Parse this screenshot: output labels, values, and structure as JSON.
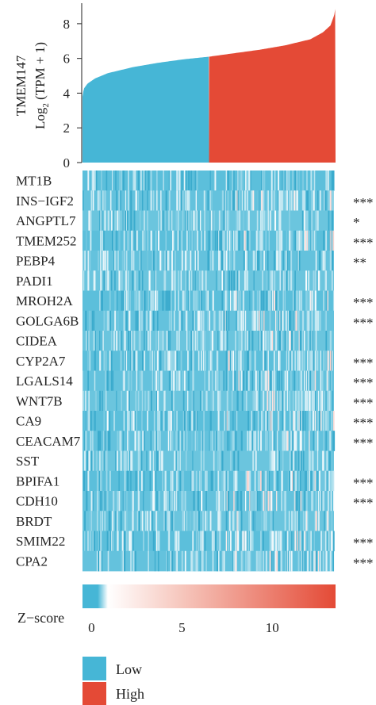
{
  "colors": {
    "low": "#46b6d6",
    "high": "#e44a36",
    "heat_low": "#46b6d6",
    "heat_mid": "#ffffff",
    "heat_high": "#e44a36"
  },
  "chart_data": [
    {
      "type": "area",
      "description": "TMEM147 expression sorted ascending across samples",
      "ylabel_line1": "TMEM147",
      "ylabel_line2_prefix": "Log",
      "ylabel_line2_sub": "2",
      "ylabel_line2_suffix": " (TPM + 1)",
      "ylim": [
        0,
        9
      ],
      "yticks": [
        "0",
        "2",
        "4",
        "6",
        "8"
      ],
      "split_fraction": 0.5,
      "profile": {
        "quantile": [
          0.0,
          0.005,
          0.02,
          0.05,
          0.1,
          0.2,
          0.3,
          0.4,
          0.5,
          0.6,
          0.7,
          0.8,
          0.9,
          0.95,
          0.98,
          0.995,
          1.0
        ],
        "value": [
          3.8,
          4.25,
          4.55,
          4.85,
          5.15,
          5.5,
          5.75,
          5.95,
          6.1,
          6.3,
          6.5,
          6.75,
          7.1,
          7.5,
          7.9,
          8.5,
          9.0
        ]
      },
      "series": [
        {
          "name": "Low",
          "color": "#46b6d6"
        },
        {
          "name": "High",
          "color": "#e44a36"
        }
      ]
    },
    {
      "type": "heatmap",
      "rows": [
        {
          "gene": "MT1B",
          "sig": ""
        },
        {
          "gene": "INS−IGF2",
          "sig": "***"
        },
        {
          "gene": "ANGPTL7",
          "sig": "*"
        },
        {
          "gene": "TMEM252",
          "sig": "***"
        },
        {
          "gene": "PEBP4",
          "sig": "**"
        },
        {
          "gene": "PADI1",
          "sig": ""
        },
        {
          "gene": "MROH2A",
          "sig": "***"
        },
        {
          "gene": "GOLGA6B",
          "sig": "***"
        },
        {
          "gene": "CIDEA",
          "sig": ""
        },
        {
          "gene": "CYP2A7",
          "sig": "***"
        },
        {
          "gene": "LGALS14",
          "sig": "***"
        },
        {
          "gene": "WNT7B",
          "sig": "***"
        },
        {
          "gene": "CA9",
          "sig": "***"
        },
        {
          "gene": "CEACAM7",
          "sig": "***"
        },
        {
          "gene": "SST",
          "sig": ""
        },
        {
          "gene": "BPIFA1",
          "sig": "***"
        },
        {
          "gene": "CDH10",
          "sig": "***"
        },
        {
          "gene": "BRDT",
          "sig": ""
        },
        {
          "gene": "SMIM22",
          "sig": "***"
        },
        {
          "gene": "CPA2",
          "sig": "***"
        }
      ],
      "columns_shown": 300,
      "colorbar": {
        "label": "Z−score",
        "range": [
          -0.5,
          13.5
        ],
        "ticks": [
          0,
          5,
          10
        ],
        "tick_labels": [
          "0",
          "5",
          "10"
        ]
      }
    }
  ],
  "legend": {
    "title": "",
    "items": [
      {
        "label": "Low",
        "color": "#46b6d6"
      },
      {
        "label": "High",
        "color": "#e44a36"
      }
    ]
  }
}
